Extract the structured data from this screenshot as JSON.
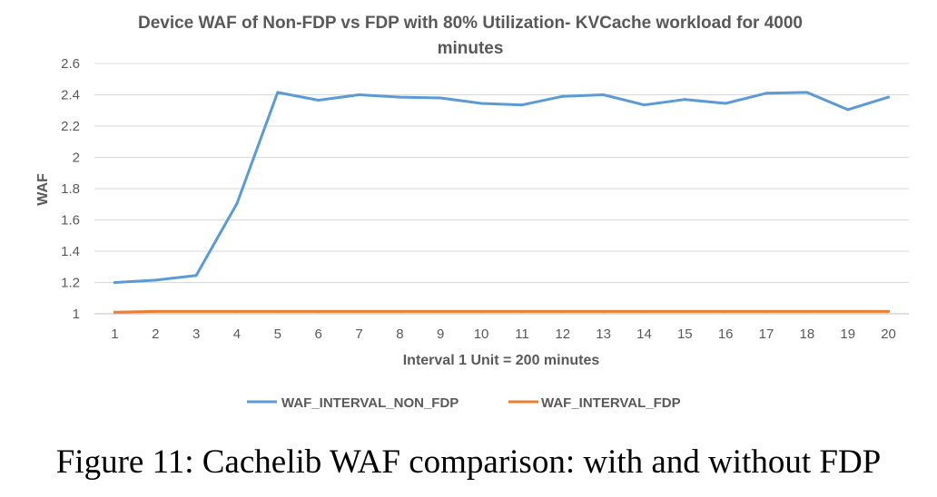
{
  "chart_data": {
    "type": "line",
    "title_line1": "Device WAF of Non-FDP vs FDP with 80% Utilization- KVCache workload for 4000",
    "title_line2": "minutes",
    "xlabel": "Interval 1 Unit = 200 minutes",
    "ylabel": "WAF",
    "categories": [
      "1",
      "2",
      "3",
      "4",
      "5",
      "6",
      "7",
      "8",
      "9",
      "10",
      "11",
      "12",
      "13",
      "14",
      "15",
      "16",
      "17",
      "18",
      "19",
      "20"
    ],
    "ylim": [
      1,
      2.6
    ],
    "yticks": [
      "1",
      "1.2",
      "1.4",
      "1.6",
      "1.8",
      "2",
      "2.2",
      "2.4",
      "2.6"
    ],
    "grid": true,
    "legend_position": "bottom",
    "series": [
      {
        "name": "WAF_INTERVAL_NON_FDP",
        "color": "#5B9BD5",
        "values": [
          1.2,
          1.215,
          1.245,
          1.705,
          2.415,
          2.365,
          2.4,
          2.385,
          2.38,
          2.345,
          2.335,
          2.39,
          2.4,
          2.335,
          2.37,
          2.345,
          2.41,
          2.415,
          2.305,
          2.385
        ]
      },
      {
        "name": "WAF_INTERVAL_FDP",
        "color": "#ED7D31",
        "values": [
          1.01,
          1.015,
          1.015,
          1.015,
          1.015,
          1.015,
          1.015,
          1.015,
          1.015,
          1.015,
          1.015,
          1.015,
          1.015,
          1.015,
          1.015,
          1.015,
          1.015,
          1.015,
          1.015,
          1.015
        ]
      }
    ]
  },
  "caption": "Figure 11: Cachelib WAF comparison: with and without FDP"
}
